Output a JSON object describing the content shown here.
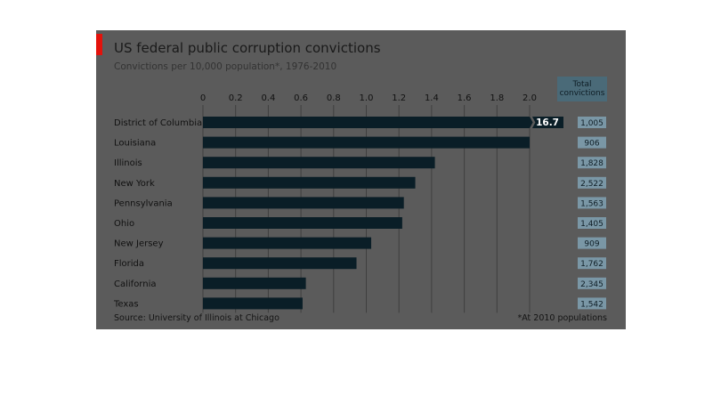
{
  "chart_data": {
    "type": "bar",
    "orientation": "horizontal",
    "title": "US federal public corruption convictions",
    "subtitle": "Convictions per 10,000 population*, 1976-2010",
    "categories": [
      "District of Columbia",
      "Louisiana",
      "Illinois",
      "New York",
      "Pennsylvania",
      "Ohio",
      "New Jersey",
      "Florida",
      "California",
      "Texas"
    ],
    "values": [
      16.7,
      2.0,
      1.42,
      1.3,
      1.23,
      1.22,
      1.03,
      0.94,
      0.63,
      0.61
    ],
    "value_labels": [
      "16.7",
      "",
      "",
      "",
      "",
      "",
      "",
      "",
      "",
      ""
    ],
    "xlim": [
      0,
      2.0
    ],
    "xticks": [
      "0",
      "0.2",
      "0.4",
      "0.6",
      "0.8",
      "1.0",
      "1.2",
      "1.4",
      "1.6",
      "1.8",
      "2.0"
    ],
    "broken_axis_categories": [
      "District of Columbia"
    ],
    "totals_header": "Total convictions",
    "totals": [
      "1,005",
      "906",
      "1,828",
      "2,522",
      "1,563",
      "1,405",
      "909",
      "1,762",
      "2,345",
      "1,542"
    ],
    "source": "Source: University of Illinois at Chicago",
    "footnote": "*At 2010 populations",
    "colors": {
      "background": "#5b5b5b",
      "bar": "#0a1e27",
      "bar_highlight": "#1c7aa3",
      "gridline": "#3f3f3f",
      "accent": "#e3120b",
      "totals_box": "#7a97a6"
    }
  }
}
